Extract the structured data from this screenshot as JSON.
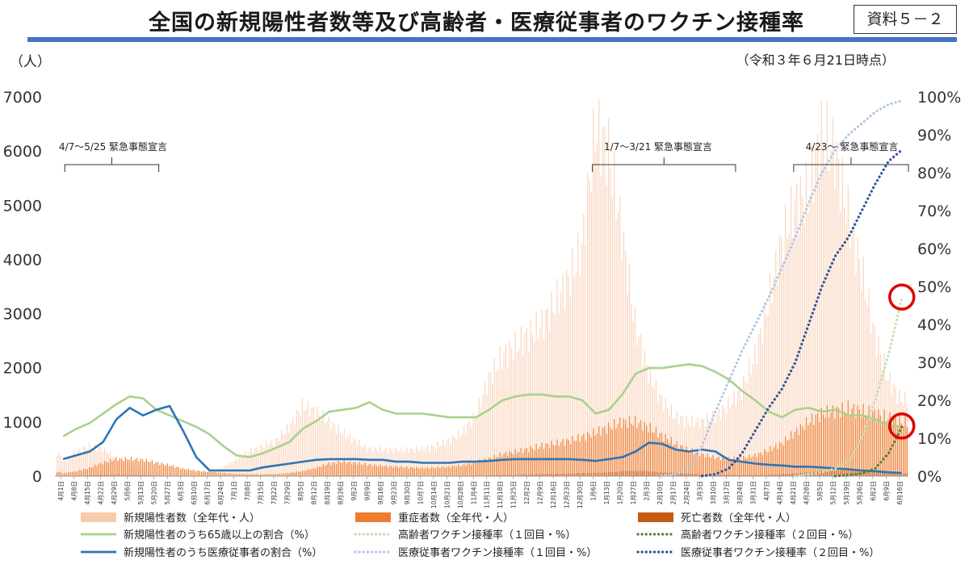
{
  "header": {
    "title": "全国の新規陽性者数等及び高齢者・医療従事者のワクチン接種率",
    "doc_label": "資料５－２",
    "timestamp": "（令和３年６月21日時点）"
  },
  "colors": {
    "new_cases": "#f8cbad",
    "severe": "#ed7d31",
    "deaths": "#c55a11",
    "ratio65": "#a9d18e",
    "medical_ratio": "#2e75b6",
    "elderly1": "#c5e0b4",
    "elderly2": "#548235",
    "med1": "#b4c7e7",
    "med2": "#2f5597",
    "accent_rule": "#4472c4",
    "circle": "#e00000"
  },
  "chart_data": {
    "type": "bar",
    "y_left_label": "（人）",
    "y_left_ticks": [
      0,
      1000,
      2000,
      3000,
      4000,
      5000,
      6000,
      7000
    ],
    "y_left_lim": [
      0,
      7000
    ],
    "y_right_ticks": [
      "0%",
      "10%",
      "20%",
      "30%",
      "40%",
      "50%",
      "60%",
      "70%",
      "80%",
      "90%",
      "100%"
    ],
    "y_right_lim": [
      0,
      100
    ],
    "x_tick_labels": [
      "4月1日",
      "4月8日",
      "4月15日",
      "4月22日",
      "4月29日",
      "5月6日",
      "5月13日",
      "5月20日",
      "5月27日",
      "6月3日",
      "6月10日",
      "6月17日",
      "6月24日",
      "7月1日",
      "7月8日",
      "7月15日",
      "7月22日",
      "7月29日",
      "8月5日",
      "8月12日",
      "8月19日",
      "8月26日",
      "9月2日",
      "9月9日",
      "9月16日",
      "9月23日",
      "9月30日",
      "10月7日",
      "10月14日",
      "10月21日",
      "10月28日",
      "11月4日",
      "11月11日",
      "11月18日",
      "11月25日",
      "12月2日",
      "12月9日",
      "12月16日",
      "12月23日",
      "12月30日",
      "1月6日",
      "1月13日",
      "1月20日",
      "1月27日",
      "2月3日",
      "2月10日",
      "2月17日",
      "2月24日",
      "3月3日",
      "3月10日",
      "3月17日",
      "3月24日",
      "3月31日",
      "4月7日",
      "4月14日",
      "4月21日",
      "4月28日",
      "5月5日",
      "5月12日",
      "5月19日",
      "5月26日",
      "6月2日",
      "6月9日",
      "6月16日"
    ],
    "annotations": [
      {
        "text": "4/7～5/25 緊急事態宣言",
        "start": "4月7日",
        "end": "5月25日"
      },
      {
        "text": "1/7～3/21 緊急事態宣言",
        "start": "1月7日",
        "end": "3月21日"
      },
      {
        "text": "4/23～ 緊急事態宣言",
        "start": "4月23日",
        "end": ""
      }
    ],
    "series": [
      {
        "name": "新規陽性者数（全年代・人）",
        "type": "bar",
        "axis": "left",
        "weekly": [
          250,
          450,
          550,
          500,
          350,
          200,
          100,
          70,
          40,
          50,
          50,
          80,
          150,
          300,
          450,
          550,
          650,
          900,
          1300,
          1200,
          1000,
          800,
          650,
          500,
          480,
          480,
          480,
          500,
          550,
          650,
          800,
          1100,
          1800,
          2200,
          2400,
          2600,
          2800,
          3200,
          3600,
          4200,
          6400,
          6000,
          4500,
          2800,
          1900,
          1400,
          1100,
          1000,
          1000,
          1100,
          1300,
          1600,
          2200,
          3200,
          4300,
          5000,
          5200,
          6300,
          6000,
          4800,
          3800,
          2600,
          1800,
          1400
        ]
      },
      {
        "name": "重症者数（全年代・人）",
        "type": "bar",
        "axis": "left",
        "weekly": [
          50,
          90,
          150,
          250,
          310,
          320,
          300,
          250,
          200,
          140,
          100,
          80,
          60,
          40,
          35,
          35,
          40,
          60,
          90,
          150,
          230,
          260,
          240,
          210,
          190,
          175,
          160,
          150,
          155,
          170,
          200,
          250,
          320,
          400,
          450,
          500,
          560,
          600,
          650,
          720,
          800,
          900,
          1000,
          1000,
          900,
          750,
          600,
          480,
          400,
          340,
          320,
          330,
          380,
          480,
          600,
          800,
          1000,
          1150,
          1200,
          1250,
          1200,
          1150,
          1080,
          1000
        ]
      },
      {
        "name": "死亡者数（全年代・人）",
        "type": "bar",
        "axis": "left",
        "weekly": [
          5,
          8,
          15,
          20,
          25,
          22,
          18,
          12,
          8,
          5,
          3,
          2,
          1,
          1,
          1,
          2,
          2,
          3,
          5,
          8,
          12,
          15,
          14,
          12,
          10,
          8,
          7,
          6,
          6,
          7,
          8,
          10,
          15,
          20,
          25,
          30,
          35,
          40,
          45,
          55,
          60,
          70,
          90,
          100,
          90,
          70,
          55,
          45,
          35,
          28,
          22,
          20,
          20,
          25,
          35,
          50,
          70,
          90,
          100,
          110,
          100,
          80,
          60,
          45
        ]
      },
      {
        "name": "新規陽性者のうち65歳以上の割合（%）",
        "type": "line",
        "axis": "right",
        "weekly": [
          10.5,
          12.5,
          14,
          16.5,
          19,
          21,
          20.5,
          17.5,
          16,
          14.5,
          13,
          11,
          8,
          5.5,
          5,
          6,
          7.5,
          9,
          12.5,
          14.5,
          17,
          17.5,
          18,
          19.5,
          17.5,
          16.5,
          16.5,
          16.5,
          16,
          15.5,
          15.5,
          15.5,
          17.5,
          20,
          21,
          21.5,
          21.5,
          21,
          21,
          20,
          16.5,
          17.5,
          21.5,
          27,
          28.5,
          28.5,
          29,
          29.5,
          29,
          27.5,
          25.5,
          22.5,
          20,
          17,
          15.5,
          17.5,
          18,
          17,
          17.5,
          16,
          16,
          15,
          13.5,
          13
        ]
      },
      {
        "name": "新規陽性者のうち医療従事者の割合（%）",
        "type": "line",
        "axis": "right",
        "weekly": [
          4.5,
          5.5,
          6.5,
          9,
          15,
          18,
          16,
          17.5,
          18.5,
          12,
          5,
          1.5,
          1.5,
          1.5,
          1.5,
          2.3,
          2.8,
          3.3,
          3.8,
          4.3,
          4.5,
          4.5,
          4.5,
          4.3,
          4.3,
          3.8,
          3.8,
          3.5,
          3.5,
          3.5,
          3.8,
          3.8,
          4,
          4.3,
          4.5,
          4.5,
          4.5,
          4.5,
          4.5,
          4.3,
          4,
          4.5,
          5,
          6.5,
          8.8,
          8.5,
          7,
          6.5,
          7,
          6.5,
          4.3,
          3.8,
          3.3,
          3,
          2.8,
          2.5,
          2.5,
          2.3,
          2,
          1.8,
          1.5,
          1.3,
          1,
          0.8
        ]
      },
      {
        "name": "高齢者ワクチン接種率（１回目・%）",
        "type": "line",
        "axis": "right",
        "points": [
          [
            56,
            0
          ],
          [
            57,
            0.5
          ],
          [
            58,
            1
          ],
          [
            59,
            2
          ],
          [
            60,
            4
          ],
          [
            61,
            10
          ],
          [
            62,
            20
          ],
          [
            63,
            32
          ],
          [
            64,
            47
          ]
        ]
      },
      {
        "name": "高齢者ワクチン接種率（２回目・%）",
        "type": "line",
        "axis": "right",
        "points": [
          [
            59,
            0
          ],
          [
            60,
            0.3
          ],
          [
            61,
            0.7
          ],
          [
            62,
            2
          ],
          [
            63,
            6
          ],
          [
            64,
            13
          ]
        ]
      },
      {
        "name": "医療従事者ワクチン接種率（１回目・%）",
        "type": "line",
        "axis": "right",
        "points": [
          [
            46,
            0
          ],
          [
            47,
            0.5
          ],
          [
            48,
            2
          ],
          [
            49,
            8
          ],
          [
            50,
            17
          ],
          [
            51,
            25
          ],
          [
            52,
            33
          ],
          [
            53,
            40
          ],
          [
            54,
            47
          ],
          [
            55,
            55
          ],
          [
            56,
            63
          ],
          [
            57,
            72
          ],
          [
            58,
            80
          ],
          [
            59,
            86
          ],
          [
            60,
            90
          ],
          [
            61,
            93
          ],
          [
            62,
            96
          ],
          [
            63,
            98
          ],
          [
            64,
            99
          ]
        ]
      },
      {
        "name": "医療従事者ワクチン接種率（２回目・%）",
        "type": "line",
        "axis": "right",
        "points": [
          [
            49,
            0
          ],
          [
            50,
            0.5
          ],
          [
            51,
            2
          ],
          [
            52,
            6
          ],
          [
            53,
            12
          ],
          [
            54,
            18
          ],
          [
            55,
            23
          ],
          [
            56,
            30
          ],
          [
            57,
            40
          ],
          [
            58,
            50
          ],
          [
            59,
            58
          ],
          [
            60,
            63
          ],
          [
            61,
            70
          ],
          [
            62,
            77
          ],
          [
            63,
            83
          ],
          [
            64,
            86
          ]
        ]
      }
    ],
    "highlights": [
      {
        "series": "高齢者ワクチン接種率（１回目・%）",
        "x": 64,
        "y": 47
      },
      {
        "series": "高齢者ワクチン接種率（２回目・%）",
        "x": 64,
        "y": 13
      }
    ],
    "legend": [
      {
        "label": "新規陽性者数（全年代・人）",
        "style": "box",
        "color": "#f8cbad"
      },
      {
        "label": "重症者数（全年代・人）",
        "style": "box",
        "color": "#ed7d31"
      },
      {
        "label": "死亡者数（全年代・人）",
        "style": "box",
        "color": "#c55a11"
      },
      {
        "label": "新規陽性者のうち65歳以上の割合（%）",
        "style": "solid",
        "color": "#a9d18e"
      },
      {
        "label": "高齢者ワクチン接種率（１回目・%）",
        "style": "dot",
        "color": "#c5e0b4"
      },
      {
        "label": "高齢者ワクチン接種率（２回目・%）",
        "style": "dot",
        "color": "#548235"
      },
      {
        "label": "新規陽性者のうち医療従事者の割合（%）",
        "style": "solid",
        "color": "#2e75b6"
      },
      {
        "label": "医療従事者ワクチン接種率（１回目・%）",
        "style": "dot",
        "color": "#b4c7e7"
      },
      {
        "label": "医療従事者ワクチン接種率（２回目・%）",
        "style": "dot",
        "color": "#2f5597"
      }
    ],
    "legend_placement": "bottom",
    "grid": false
  }
}
